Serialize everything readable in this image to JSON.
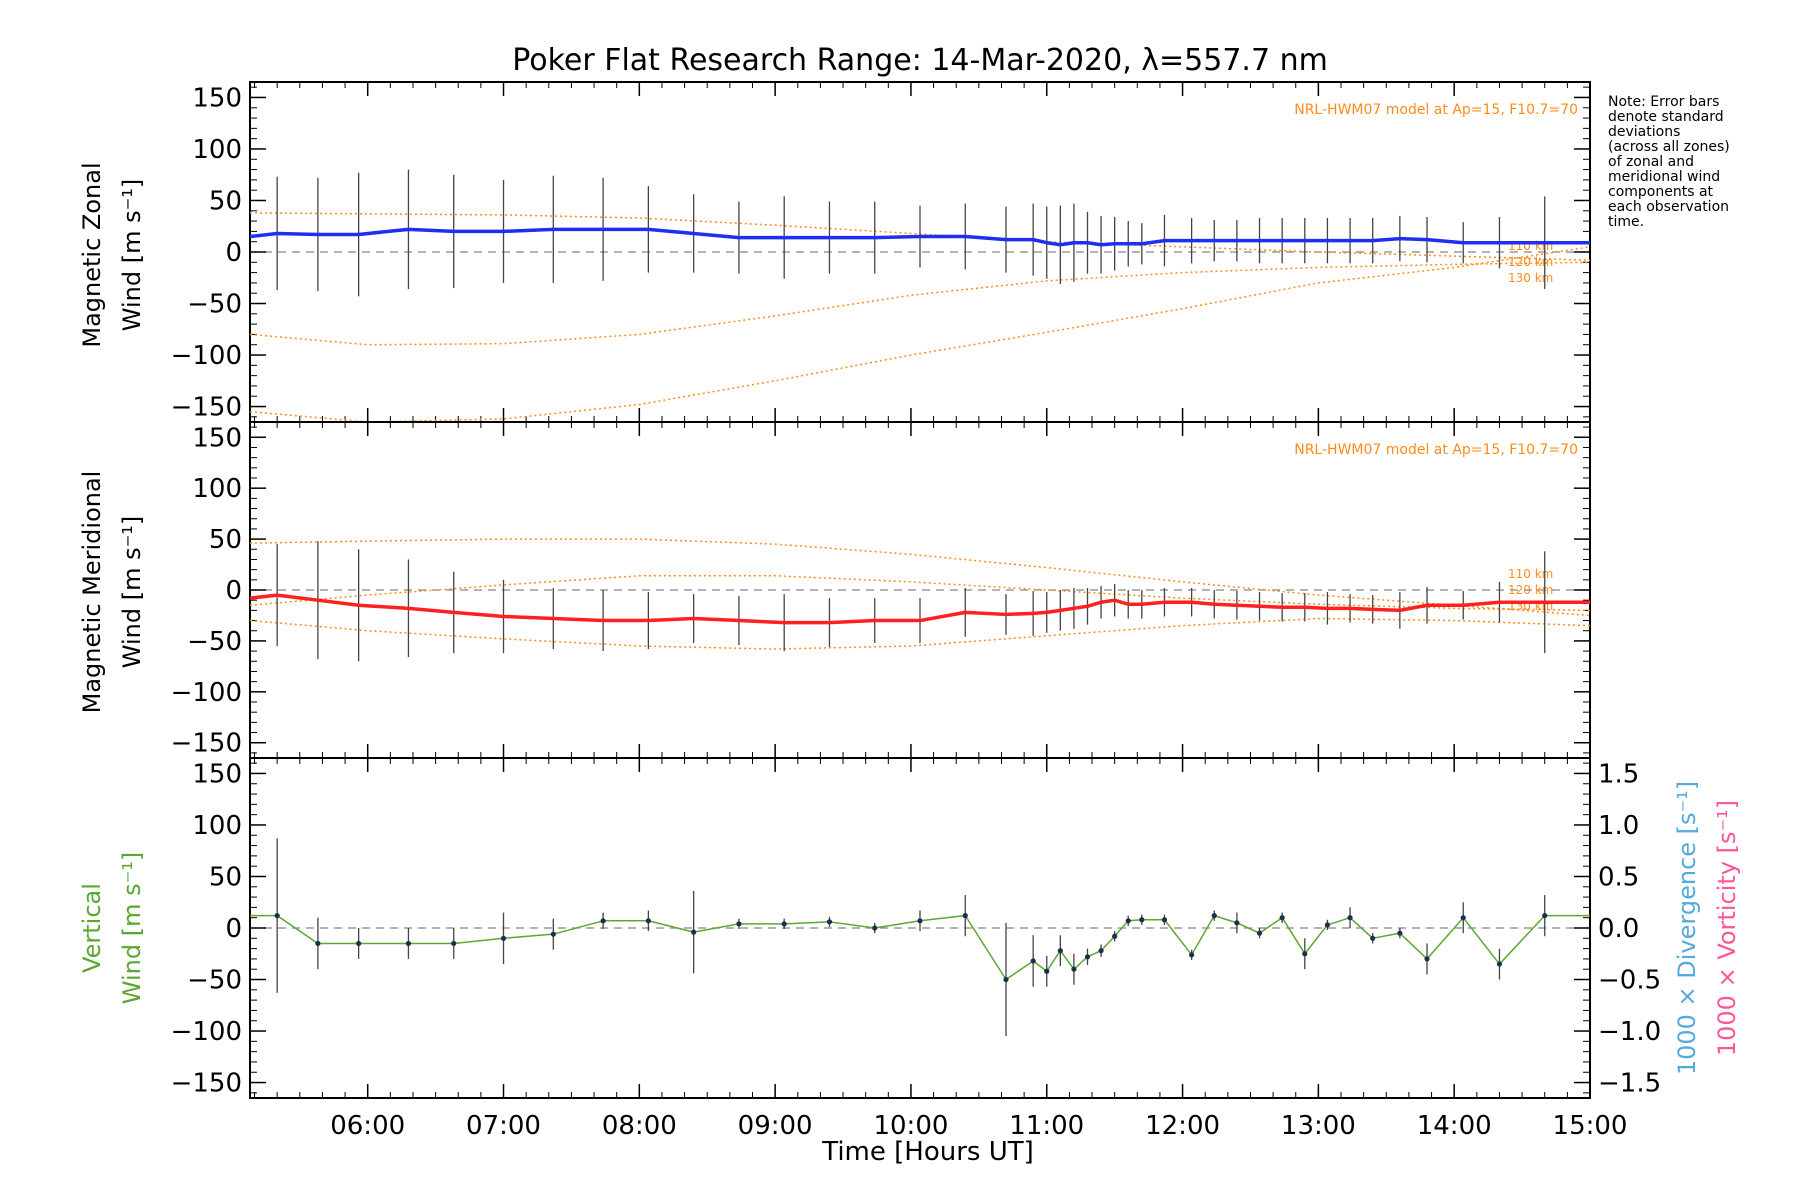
{
  "title": "Poker Flat Research Range: 14-Mar-2020, λ=557.7 nm",
  "note_lines": [
    "Note: Error bars",
    "denote standard",
    "deviations",
    "(across all zones)",
    "of zonal and",
    "meridional wind",
    "components at",
    "each observation",
    "time."
  ],
  "colors": {
    "zonal": "#1f2ff2",
    "meridional": "#ff2020",
    "vertical": "#5aa832",
    "model": "#ff8c1a",
    "divergence": "#55aadd",
    "vorticity": "#ff5599",
    "grid_zero": "#888888",
    "err": "#444444"
  },
  "chart_data": {
    "type": "line",
    "x_range": [
      "05:08",
      "15:00"
    ],
    "x_ticks": [
      "06:00",
      "07:00",
      "08:00",
      "09:00",
      "10:00",
      "11:00",
      "12:00",
      "13:00",
      "14:00",
      "15:00"
    ],
    "xlabel": "Time [Hours UT]",
    "y_ticks": [
      "150",
      "100",
      "50",
      "0",
      "−50",
      "−100",
      "−150"
    ],
    "ylim": [
      -165,
      165
    ],
    "panels": [
      {
        "ylabel_line1": "Magnetic Zonal",
        "ylabel_line2": "Wind [m s⁻¹]",
        "model_label": "NRL-HWM07 model at Ap=15, F10.7=70",
        "model_altitudes": [
          "110 km",
          "120 km",
          "130 km"
        ],
        "series": [
          {
            "times": [
              "05:08",
              "05:20",
              "05:38",
              "05:56",
              "06:18",
              "06:38",
              "07:00",
              "07:22",
              "07:44",
              "08:04",
              "08:24",
              "08:44",
              "09:04",
              "09:24",
              "09:44",
              "10:04",
              "10:24",
              "10:42",
              "10:54",
              "11:00",
              "11:06",
              "11:12",
              "11:18",
              "11:24",
              "11:30",
              "11:36",
              "11:42",
              "11:52",
              "12:04",
              "12:14",
              "12:24",
              "12:34",
              "12:44",
              "12:54",
              "13:04",
              "13:14",
              "13:24",
              "13:36",
              "13:48",
              "14:04",
              "14:20",
              "14:40",
              "15:00"
            ],
            "values": [
              15,
              18,
              17,
              17,
              22,
              20,
              20,
              22,
              22,
              22,
              18,
              14,
              14,
              14,
              14,
              15,
              15,
              12,
              12,
              9,
              7,
              9,
              9,
              7,
              8,
              8,
              8,
              11,
              11,
              11,
              11,
              11,
              11,
              11,
              11,
              11,
              11,
              13,
              12,
              9,
              9,
              9,
              9
            ],
            "err": [
              0,
              55,
              55,
              60,
              58,
              55,
              50,
              52,
              50,
              42,
              38,
              35,
              40,
              35,
              35,
              30,
              32,
              32,
              35,
              35,
              38,
              38,
              30,
              28,
              26,
              22,
              20,
              25,
              22,
              20,
              20,
              22,
              22,
              22,
              22,
              22,
              22,
              22,
              22,
              20,
              25,
              45,
              0
            ]
          }
        ],
        "model_curves": [
          {
            "times": [
              "05:08",
              "06:00",
              "07:00",
              "08:00",
              "09:00",
              "10:00",
              "11:00",
              "12:00",
              "13:00",
              "14:00",
              "15:00"
            ],
            "values": [
              38,
              37,
              36,
              33,
              26,
              18,
              10,
              5,
              0,
              -4,
              -8
            ]
          },
          {
            "times": [
              "05:08",
              "06:00",
              "07:00",
              "08:00",
              "09:00",
              "10:00",
              "11:00",
              "12:00",
              "13:00",
              "14:00",
              "15:00"
            ],
            "values": [
              -80,
              -90,
              -89,
              -80,
              -62,
              -42,
              -28,
              -20,
              -15,
              -12,
              -10
            ]
          },
          {
            "times": [
              "05:08",
              "06:00",
              "07:00",
              "08:00",
              "09:00",
              "10:00",
              "11:00",
              "12:00",
              "13:00",
              "14:00",
              "15:00"
            ],
            "values": [
              -155,
              -165,
              -162,
              -148,
              -125,
              -100,
              -78,
              -55,
              -30,
              -15,
              5
            ]
          }
        ]
      },
      {
        "ylabel_line1": "Magnetic Meridional",
        "ylabel_line2": "Wind [m s⁻¹]",
        "model_label": "NRL-HWM07 model at Ap=15, F10.7=70",
        "model_altitudes": [
          "110 km",
          "120 km",
          "130 km"
        ],
        "series": [
          {
            "times": [
              "05:08",
              "05:20",
              "05:38",
              "05:56",
              "06:18",
              "06:38",
              "07:00",
              "07:22",
              "07:44",
              "08:04",
              "08:24",
              "08:44",
              "09:04",
              "09:24",
              "09:44",
              "10:04",
              "10:24",
              "10:42",
              "10:54",
              "11:00",
              "11:06",
              "11:12",
              "11:18",
              "11:24",
              "11:30",
              "11:36",
              "11:42",
              "11:52",
              "12:04",
              "12:14",
              "12:24",
              "12:34",
              "12:44",
              "12:54",
              "13:04",
              "13:14",
              "13:24",
              "13:36",
              "13:48",
              "14:04",
              "14:20",
              "14:40",
              "15:00"
            ],
            "values": [
              -8,
              -5,
              -10,
              -15,
              -18,
              -22,
              -26,
              -28,
              -30,
              -30,
              -28,
              -30,
              -32,
              -32,
              -30,
              -30,
              -22,
              -24,
              -23,
              -22,
              -20,
              -18,
              -16,
              -12,
              -10,
              -14,
              -14,
              -12,
              -12,
              -14,
              -15,
              -16,
              -17,
              -17,
              -18,
              -18,
              -19,
              -20,
              -15,
              -15,
              -12,
              -12,
              -12
            ],
            "err": [
              0,
              50,
              58,
              55,
              48,
              40,
              36,
              30,
              30,
              28,
              24,
              24,
              28,
              24,
              22,
              22,
              24,
              20,
              22,
              20,
              20,
              20,
              18,
              16,
              16,
              14,
              14,
              14,
              14,
              14,
              14,
              14,
              14,
              14,
              16,
              14,
              14,
              18,
              18,
              14,
              20,
              50,
              0
            ]
          }
        ],
        "model_curves": [
          {
            "times": [
              "05:08",
              "06:00",
              "07:00",
              "08:00",
              "09:00",
              "10:00",
              "11:00",
              "12:00",
              "13:00",
              "14:00",
              "15:00"
            ],
            "values": [
              46,
              48,
              50,
              50,
              45,
              35,
              22,
              8,
              -5,
              -15,
              -25
            ]
          },
          {
            "times": [
              "05:08",
              "06:00",
              "07:00",
              "08:00",
              "09:00",
              "10:00",
              "11:00",
              "12:00",
              "13:00",
              "14:00",
              "15:00"
            ],
            "values": [
              -15,
              -5,
              5,
              14,
              14,
              8,
              0,
              -8,
              -14,
              -18,
              -20
            ]
          },
          {
            "times": [
              "05:08",
              "06:00",
              "07:00",
              "08:00",
              "09:00",
              "10:00",
              "11:00",
              "12:00",
              "13:00",
              "14:00",
              "15:00"
            ],
            "values": [
              -30,
              -40,
              -48,
              -55,
              -58,
              -55,
              -45,
              -35,
              -28,
              -30,
              -35
            ]
          }
        ]
      },
      {
        "ylabel_line1": "Vertical",
        "ylabel_line2": "Wind [m s⁻¹]",
        "right_label_1": "1000 × Divergence [s⁻¹]",
        "right_label_2": "1000 × Vorticity [s⁻¹]",
        "right_ticks": [
          "1.5",
          "1.0",
          "0.5",
          "0.0",
          "−0.5",
          "−1.0",
          "−1.5"
        ],
        "right_lim": [
          -1.65,
          1.65
        ],
        "series": [
          {
            "times": [
              "05:08",
              "05:20",
              "05:38",
              "05:56",
              "06:18",
              "06:38",
              "07:00",
              "07:22",
              "07:44",
              "08:04",
              "08:24",
              "08:44",
              "09:04",
              "09:24",
              "09:44",
              "10:04",
              "10:24",
              "10:42",
              "10:54",
              "11:00",
              "11:06",
              "11:12",
              "11:18",
              "11:24",
              "11:30",
              "11:36",
              "11:42",
              "11:52",
              "12:04",
              "12:14",
              "12:24",
              "12:34",
              "12:44",
              "12:54",
              "13:04",
              "13:14",
              "13:24",
              "13:36",
              "13:48",
              "14:04",
              "14:20",
              "14:40",
              "15:00"
            ],
            "values": [
              12,
              12,
              -15,
              -15,
              -15,
              -15,
              -10,
              -6,
              7,
              7,
              -4,
              4,
              4,
              6,
              0,
              7,
              12,
              -50,
              -32,
              -42,
              -22,
              -40,
              -28,
              -22,
              -8,
              7,
              8,
              8,
              -26,
              12,
              5,
              -5,
              10,
              -25,
              3,
              10,
              -10,
              -5,
              -30,
              10,
              -35,
              12,
              12
            ],
            "err": [
              0,
              75,
              25,
              15,
              15,
              15,
              25,
              15,
              8,
              10,
              40,
              5,
              5,
              5,
              5,
              10,
              20,
              55,
              25,
              15,
              15,
              15,
              8,
              6,
              5,
              5,
              5,
              5,
              5,
              5,
              10,
              5,
              5,
              15,
              5,
              10,
              5,
              5,
              15,
              15,
              15,
              20,
              0
            ]
          }
        ]
      }
    ]
  }
}
